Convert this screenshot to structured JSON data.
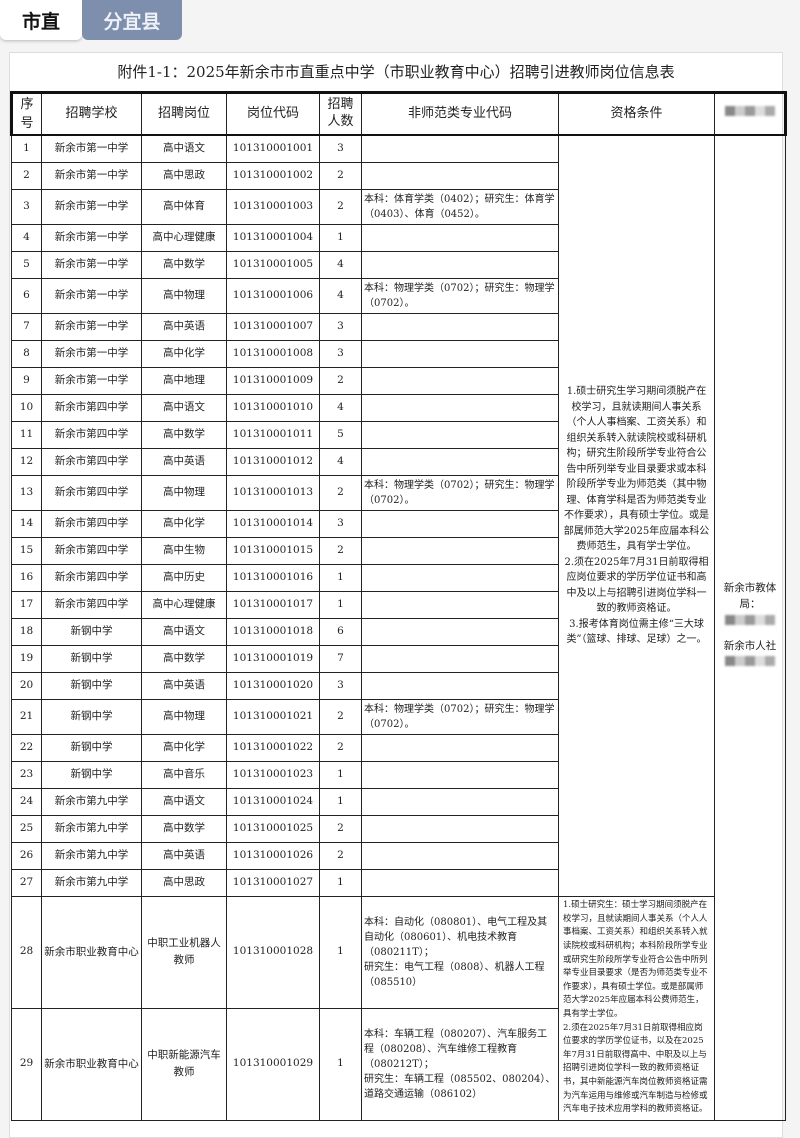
{
  "tabs": [
    {
      "label": "市直",
      "active": true
    },
    {
      "label": "分宜县",
      "active": false
    }
  ],
  "title": "附件1-1：2025年新余市市直重点中学（市职业教育中心）招聘引进教师岗位信息表",
  "headers": {
    "seq": "序号",
    "school": "招聘学校",
    "post": "招聘岗位",
    "code": "岗位代码",
    "count": "招聘\n人数",
    "major": "非师范类专业代码",
    "qual": "资格条件",
    "last": ""
  },
  "rows": [
    {
      "seq": "1",
      "school": "新余市第一中学",
      "post": "高中语文",
      "code": "101310001001",
      "count": "3",
      "major": ""
    },
    {
      "seq": "2",
      "school": "新余市第一中学",
      "post": "高中思政",
      "code": "101310001002",
      "count": "2",
      "major": ""
    },
    {
      "seq": "3",
      "school": "新余市第一中学",
      "post": "高中体育",
      "code": "101310001003",
      "count": "2",
      "major": "本科：体育学类（0402）；研究生：体育学（0403）、体育（0452）。"
    },
    {
      "seq": "4",
      "school": "新余市第一中学",
      "post": "高中心理健康",
      "code": "101310001004",
      "count": "1",
      "major": ""
    },
    {
      "seq": "5",
      "school": "新余市第一中学",
      "post": "高中数学",
      "code": "101310001005",
      "count": "4",
      "major": ""
    },
    {
      "seq": "6",
      "school": "新余市第一中学",
      "post": "高中物理",
      "code": "101310001006",
      "count": "4",
      "major": "本科：物理学类（0702）；研究生：物理学（0702）。"
    },
    {
      "seq": "7",
      "school": "新余市第一中学",
      "post": "高中英语",
      "code": "101310001007",
      "count": "3",
      "major": ""
    },
    {
      "seq": "8",
      "school": "新余市第一中学",
      "post": "高中化学",
      "code": "101310001008",
      "count": "3",
      "major": ""
    },
    {
      "seq": "9",
      "school": "新余市第一中学",
      "post": "高中地理",
      "code": "101310001009",
      "count": "2",
      "major": ""
    },
    {
      "seq": "10",
      "school": "新余市第四中学",
      "post": "高中语文",
      "code": "101310001010",
      "count": "4",
      "major": ""
    },
    {
      "seq": "11",
      "school": "新余市第四中学",
      "post": "高中数学",
      "code": "101310001011",
      "count": "5",
      "major": ""
    },
    {
      "seq": "12",
      "school": "新余市第四中学",
      "post": "高中英语",
      "code": "101310001012",
      "count": "4",
      "major": ""
    },
    {
      "seq": "13",
      "school": "新余市第四中学",
      "post": "高中物理",
      "code": "101310001013",
      "count": "2",
      "major": "本科：物理学类（0702）；研究生：物理学（0702）。"
    },
    {
      "seq": "14",
      "school": "新余市第四中学",
      "post": "高中化学",
      "code": "101310001014",
      "count": "3",
      "major": ""
    },
    {
      "seq": "15",
      "school": "新余市第四中学",
      "post": "高中生物",
      "code": "101310001015",
      "count": "2",
      "major": ""
    },
    {
      "seq": "16",
      "school": "新余市第四中学",
      "post": "高中历史",
      "code": "101310001016",
      "count": "1",
      "major": ""
    },
    {
      "seq": "17",
      "school": "新余市第四中学",
      "post": "高中心理健康",
      "code": "101310001017",
      "count": "1",
      "major": ""
    },
    {
      "seq": "18",
      "school": "新钢中学",
      "post": "高中语文",
      "code": "101310001018",
      "count": "6",
      "major": ""
    },
    {
      "seq": "19",
      "school": "新钢中学",
      "post": "高中数学",
      "code": "101310001019",
      "count": "7",
      "major": ""
    },
    {
      "seq": "20",
      "school": "新钢中学",
      "post": "高中英语",
      "code": "101310001020",
      "count": "3",
      "major": ""
    },
    {
      "seq": "21",
      "school": "新钢中学",
      "post": "高中物理",
      "code": "101310001021",
      "count": "2",
      "major": "本科：物理学类（0702）；研究生：物理学（0702）。"
    },
    {
      "seq": "22",
      "school": "新钢中学",
      "post": "高中化学",
      "code": "101310001022",
      "count": "2",
      "major": ""
    },
    {
      "seq": "23",
      "school": "新钢中学",
      "post": "高中音乐",
      "code": "101310001023",
      "count": "1",
      "major": ""
    },
    {
      "seq": "24",
      "school": "新余市第九中学",
      "post": "高中语文",
      "code": "101310001024",
      "count": "1",
      "major": ""
    },
    {
      "seq": "25",
      "school": "新余市第九中学",
      "post": "高中数学",
      "code": "101310001025",
      "count": "2",
      "major": ""
    },
    {
      "seq": "26",
      "school": "新余市第九中学",
      "post": "高中英语",
      "code": "101310001026",
      "count": "2",
      "major": ""
    },
    {
      "seq": "27",
      "school": "新余市第九中学",
      "post": "高中思政",
      "code": "101310001027",
      "count": "1",
      "major": ""
    },
    {
      "seq": "28",
      "school": "新余市职业教育中心",
      "post": "中职工业机器人教师",
      "code": "101310001028",
      "count": "1",
      "major": "本科：自动化（080801）、电气工程及其自动化（080601）、机电技术教育（080211T）；\n研究生：电气工程（0808）、机器人工程（085510）"
    },
    {
      "seq": "29",
      "school": "新余市职业教育中心",
      "post": "中职新能源汽车教师",
      "code": "101310001029",
      "count": "1",
      "major": "本科：车辆工程（080207）、汽车服务工程（080208）、汽车维修工程教育（080212T）；\n研究生：车辆工程（085502、080204）、道路交通运输（086102）"
    }
  ],
  "qual_main": "1.硕士研究生学习期间须脱产在校学习，且就读期间人事关系（个人人事档案、工资关系）和组织关系转入就读院校或科研机构；研究生阶段所学专业符合公告中所列举专业目录要求或本科阶段所学专业为师范类（其中物理、体育学科是否为师范类专业不作要求），具有硕士学位。或是部属师范大学2025年应届本科公费师范生，具有学士学位。\n2.须在2025年7月31日前取得相应岗位要求的学历学位证书和高中及以上与招聘引进岗位学科一致的教师资格证。\n3.报考体育岗位需主修“三大球类”（篮球、排球、足球）之一。",
  "qual_vocational": "1.硕士研究生：硕士学习期间须脱产在校学习，且就读期间人事关系（个人人事档案、工资关系）和组织关系转入就读院校或科研机构；本科阶段所学专业或研究生阶段所学专业符合公告中所列举专业目录要求（是否为师范类专业不作要求），具有硕士学位。或是部属师范大学2025年应届本科公费师范生，具有学士学位。\n2.须在2025年7月31日前取得相应岗位要求的学历学位证书，以及在2025年7月31日前取得高中、中职及以上与招聘引进岗位学科一致的教师资格证书，其中新能源汽车岗位教师资格证需为汽车运用与维修或汽车制造与检修或汽车电子技术应用学科的教师资格证。",
  "contacts": [
    "新余市教体局：",
    "新余市人社"
  ]
}
